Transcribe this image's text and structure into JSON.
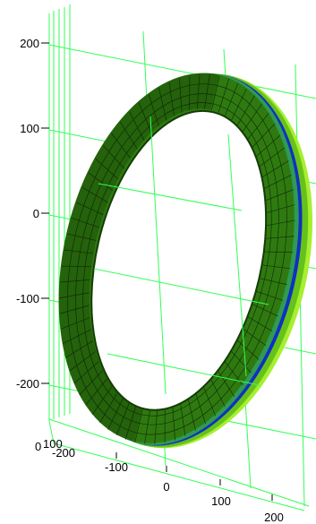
{
  "chart_data": {
    "type": "surface-3d",
    "title": "",
    "shape": "torus",
    "axes": {
      "z": {
        "ticks": [
          "200",
          "100",
          "0",
          "-100",
          "-200"
        ]
      },
      "x": {
        "ticks": [
          "-100",
          "0",
          "100",
          "200"
        ]
      },
      "y": {
        "ticks": [
          "0",
          "100",
          "-200"
        ]
      }
    },
    "grid": true,
    "colors": {
      "grid": "#33ff55",
      "surface_main": "#2f7a10",
      "surface_dark": "#1c4f08",
      "surface_light": "#66c21a",
      "rim_highlight": "#a6ef30",
      "rim_blue": "#1030c0",
      "mesh": "#0b1f05"
    }
  }
}
